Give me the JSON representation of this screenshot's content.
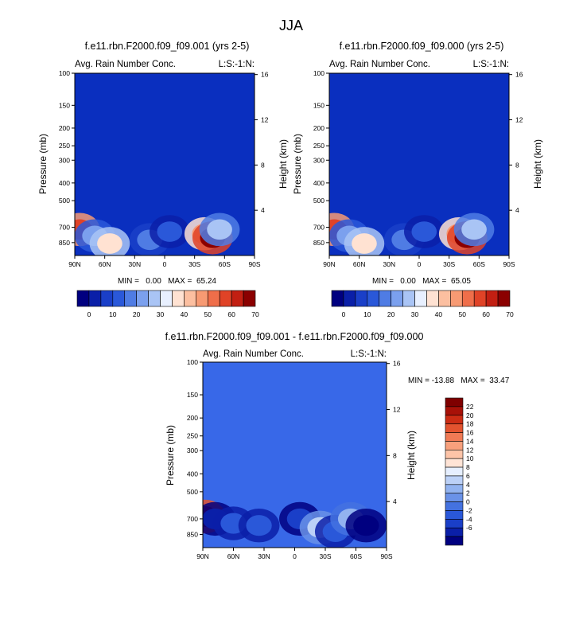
{
  "figure": {
    "title": "JJA"
  },
  "colors": {
    "abs_scale": [
      "#000080",
      "#0a1fa8",
      "#1a3fc8",
      "#2a58d9",
      "#4f7ce4",
      "#7ba0ee",
      "#a9c4f5",
      "#e8f0ff",
      "#ffe2d2",
      "#fcbfa0",
      "#f79a73",
      "#ef6e4a",
      "#e04327",
      "#c21f12",
      "#8b0000"
    ],
    "diff_scale": [
      "#000080",
      "#0a1fa8",
      "#1a3fc8",
      "#2a58d9",
      "#4472e0",
      "#6a92e8",
      "#92b3f0",
      "#bcd1f7",
      "#e6efff",
      "#ffe4d6",
      "#fdc4a8",
      "#f8a07c",
      "#f07a55",
      "#e3532f",
      "#cc2c14",
      "#a81108",
      "#7f0000"
    ]
  },
  "chart_data": [
    {
      "type": "heatmap",
      "title": "f.e11.rbn.F2000.f09_f09.001 (yrs 2-5)",
      "left_label": "Avg. Rain Number Conc.",
      "right_label": "L:S:-1:N:",
      "xlabel": "",
      "ylabel": "Pressure (mb)",
      "ylabel_right": "Height (km)",
      "x_ticks": [
        "90N",
        "60N",
        "30N",
        "0",
        "30S",
        "60S",
        "90S"
      ],
      "y_ticks": [
        "100",
        "150",
        "200",
        "250",
        "300",
        "400",
        "500",
        "700",
        "850"
      ],
      "y2_ticks": [
        "16",
        "12",
        "8",
        "4"
      ],
      "stats_text": "MIN =   0.00   MAX =  65.24",
      "min": 0.0,
      "max": 65.24,
      "colorbar_labels": [
        "0",
        "10",
        "20",
        "30",
        "40",
        "50",
        "60",
        "70"
      ],
      "features": [
        {
          "lat": 85,
          "p": 720,
          "v": 55
        },
        {
          "lat": 70,
          "p": 780,
          "v": 25
        },
        {
          "lat": 55,
          "p": 860,
          "v": 35
        },
        {
          "lat": 15,
          "p": 820,
          "v": 20
        },
        {
          "lat": -5,
          "p": 740,
          "v": 15
        },
        {
          "lat": -40,
          "p": 760,
          "v": 45
        },
        {
          "lat": -48,
          "p": 800,
          "v": 65
        },
        {
          "lat": -55,
          "p": 720,
          "v": 30
        }
      ]
    },
    {
      "type": "heatmap",
      "title": "f.e11.rbn.F2000.f09_f09.000 (yrs 2-5)",
      "left_label": "Avg. Rain Number Conc.",
      "right_label": "L:S:-1:N:",
      "xlabel": "",
      "ylabel": "Pressure (mb)",
      "ylabel_right": "Height (km)",
      "x_ticks": [
        "90N",
        "60N",
        "30N",
        "0",
        "30S",
        "60S",
        "90S"
      ],
      "y_ticks": [
        "100",
        "150",
        "200",
        "250",
        "300",
        "400",
        "500",
        "700",
        "850"
      ],
      "y2_ticks": [
        "16",
        "12",
        "8",
        "4"
      ],
      "stats_text": "MIN =   0.00   MAX =  65.05",
      "min": 0.0,
      "max": 65.05,
      "colorbar_labels": [
        "0",
        "10",
        "20",
        "30",
        "40",
        "50",
        "60",
        "70"
      ],
      "features": [
        {
          "lat": 85,
          "p": 720,
          "v": 55
        },
        {
          "lat": 70,
          "p": 780,
          "v": 25
        },
        {
          "lat": 55,
          "p": 860,
          "v": 35
        },
        {
          "lat": 15,
          "p": 820,
          "v": 20
        },
        {
          "lat": -5,
          "p": 740,
          "v": 15
        },
        {
          "lat": -40,
          "p": 760,
          "v": 45
        },
        {
          "lat": -48,
          "p": 800,
          "v": 65
        },
        {
          "lat": -55,
          "p": 720,
          "v": 30
        }
      ]
    },
    {
      "type": "heatmap",
      "title": "f.e11.rbn.F2000.f09_f09.001 - f.e11.rbn.F2000.f09_f09.000",
      "left_label": "Avg. Rain Number Conc.",
      "right_label": "L:S:-1:N:",
      "xlabel": "",
      "ylabel": "Pressure (mb)",
      "ylabel_right": "Height (km)",
      "x_ticks": [
        "90N",
        "60N",
        "30N",
        "0",
        "30S",
        "60S",
        "90S"
      ],
      "y_ticks": [
        "100",
        "150",
        "200",
        "250",
        "300",
        "400",
        "500",
        "700",
        "850"
      ],
      "y2_ticks": [
        "16",
        "12",
        "8",
        "4"
      ],
      "stats_text": "MIN = -13.88   MAX =  33.47",
      "min": -13.88,
      "max": 33.47,
      "colorbar_labels": [
        "22",
        "20",
        "18",
        "16",
        "14",
        "12",
        "10",
        "8",
        "6",
        "4",
        "2",
        "0",
        "-2",
        "-4",
        "-6"
      ],
      "features": [
        {
          "lat": 88,
          "p": 680,
          "v": 30
        },
        {
          "lat": 78,
          "p": 700,
          "v": -10
        },
        {
          "lat": 60,
          "p": 740,
          "v": -5
        },
        {
          "lat": 35,
          "p": 760,
          "v": -6
        },
        {
          "lat": -5,
          "p": 700,
          "v": -8
        },
        {
          "lat": -25,
          "p": 780,
          "v": 6
        },
        {
          "lat": -40,
          "p": 820,
          "v": -6
        },
        {
          "lat": -55,
          "p": 700,
          "v": 5
        },
        {
          "lat": -70,
          "p": 760,
          "v": -13
        }
      ]
    }
  ]
}
